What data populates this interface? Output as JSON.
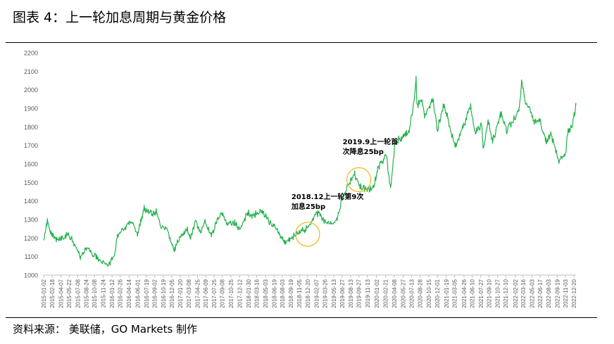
{
  "figure": {
    "title": "图表 4：上一轮加息周期与黄金价格",
    "source": "资料来源：  美联储，GO Markets 制作"
  },
  "colors": {
    "line": "#22b04a",
    "circle": "#f2b318",
    "axis_text": "#595959",
    "axis_line": "#bfbfbf"
  },
  "chart_data": {
    "type": "line",
    "title": "上一轮加息周期与黄金价格",
    "xlabel": "",
    "ylabel": "",
    "ylim": [
      1000,
      2200
    ],
    "yticks": [
      1000,
      1100,
      1200,
      1300,
      1400,
      1500,
      1600,
      1700,
      1800,
      1900,
      2000,
      2100,
      2200
    ],
    "grid": false,
    "xlim": [
      "2015-01-02",
      "2022-12-31"
    ],
    "xticks": [
      "2015-01-02",
      "2015-02-18",
      "2015-04-07",
      "2015-05-22",
      "2015-07-08",
      "2015-08-24",
      "2015-10-08",
      "2015-11-24",
      "2016-01-12",
      "2016-02-26",
      "2016-04-14",
      "2016-06-01",
      "2016-07-19",
      "2016-09-02",
      "2016-10-19",
      "2016-12-05",
      "2017-01-20",
      "2017-03-08",
      "2017-04-25",
      "2017-06-09",
      "2017-07-25",
      "2017-09-08",
      "2017-10-25",
      "2017-12-12",
      "2018-01-30",
      "2018-03-16",
      "2018-05-03",
      "2018-06-19",
      "2018-08-03",
      "2018-09-19",
      "2018-11-05",
      "2018-12-20",
      "2019-02-07",
      "2019-03-26",
      "2019-05-13",
      "2019-06-27",
      "2019-08-13",
      "2019-09-27",
      "2019-11-13",
      "2020-01-02",
      "2020-02-21",
      "2020-04-08",
      "2020-05-27",
      "2020-07-13",
      "2020-08-28",
      "2020-10-15",
      "2020-12-01",
      "2021-01-19",
      "2021-03-05",
      "2021-04-26",
      "2021-06-10",
      "2021-07-27",
      "2021-09-10",
      "2021-10-27",
      "2021-12-10",
      "2022-02-02",
      "2022-03-16",
      "2022-05-03",
      "2022-06-17",
      "2022-08-03",
      "2022-09-19",
      "2022-11-03",
      "2022-12-20"
    ],
    "series": [
      {
        "name": "黄金价格",
        "x": [
          "2015-01-02",
          "2015-01-22",
          "2015-02-10",
          "2015-03-17",
          "2015-05-18",
          "2015-06-20",
          "2015-07-24",
          "2015-08-24",
          "2015-10-14",
          "2015-12-03",
          "2015-12-17",
          "2016-01-25",
          "2016-02-11",
          "2016-03-15",
          "2016-05-02",
          "2016-05-30",
          "2016-07-06",
          "2016-08-20",
          "2016-09-14",
          "2016-10-05",
          "2016-11-10",
          "2016-12-15",
          "2017-01-20",
          "2017-03-01",
          "2017-03-15",
          "2017-04-17",
          "2017-05-09",
          "2017-06-06",
          "2017-07-10",
          "2017-08-10",
          "2017-09-08",
          "2017-10-06",
          "2017-11-15",
          "2017-12-12",
          "2018-01-25",
          "2018-02-20",
          "2018-04-11",
          "2018-05-21",
          "2018-06-30",
          "2018-08-16",
          "2018-09-20",
          "2018-10-26",
          "2018-12-18",
          "2019-01-31",
          "2019-02-20",
          "2019-03-15",
          "2019-05-02",
          "2019-05-31",
          "2019-06-25",
          "2019-08-07",
          "2019-09-04",
          "2019-10-01",
          "2019-11-12",
          "2019-12-20",
          "2020-01-08",
          "2020-02-24",
          "2020-03-19",
          "2020-04-14",
          "2020-05-18",
          "2020-06-30",
          "2020-07-27",
          "2020-08-06",
          "2020-08-11",
          "2020-09-01",
          "2020-09-24",
          "2020-11-06",
          "2020-11-30",
          "2021-01-06",
          "2021-01-28",
          "2021-03-08",
          "2021-04-15",
          "2021-06-01",
          "2021-06-25",
          "2021-08-02",
          "2021-08-09",
          "2021-09-06",
          "2021-09-30",
          "2021-11-16",
          "2021-12-15",
          "2022-01-25",
          "2022-02-24",
          "2022-03-08",
          "2022-03-29",
          "2022-04-28",
          "2022-05-16",
          "2022-06-14",
          "2022-07-21",
          "2022-08-15",
          "2022-09-28",
          "2022-11-03",
          "2022-11-15",
          "2022-12-09",
          "2022-12-31"
        ],
        "values": [
          1190,
          1290,
          1230,
          1190,
          1220,
          1170,
          1090,
          1150,
          1100,
          1065,
          1050,
          1100,
          1210,
          1250,
          1290,
          1215,
          1360,
          1330,
          1340,
          1260,
          1250,
          1130,
          1210,
          1250,
          1200,
          1290,
          1225,
          1290,
          1210,
          1290,
          1340,
          1270,
          1280,
          1245,
          1340,
          1320,
          1345,
          1290,
          1255,
          1175,
          1200,
          1230,
          1250,
          1320,
          1340,
          1295,
          1275,
          1300,
          1410,
          1500,
          1550,
          1480,
          1460,
          1480,
          1570,
          1650,
          1470,
          1720,
          1740,
          1780,
          1950,
          2067,
          1900,
          1960,
          1860,
          1950,
          1780,
          1930,
          1840,
          1690,
          1780,
          1910,
          1770,
          1810,
          1680,
          1830,
          1720,
          1870,
          1780,
          1840,
          1910,
          2043,
          1920,
          1890,
          1820,
          1840,
          1720,
          1760,
          1620,
          1640,
          1770,
          1800,
          1920
        ]
      }
    ],
    "annotations": [
      {
        "lines": [
          "2018.12上一轮第9次",
          "加息25bp"
        ],
        "date": "2018-12-20",
        "value": 1220
      },
      {
        "lines": [
          "2019.9上一轮首",
          "次降息25bp"
        ],
        "date": "2019-09-27",
        "value": 1515
      }
    ]
  }
}
